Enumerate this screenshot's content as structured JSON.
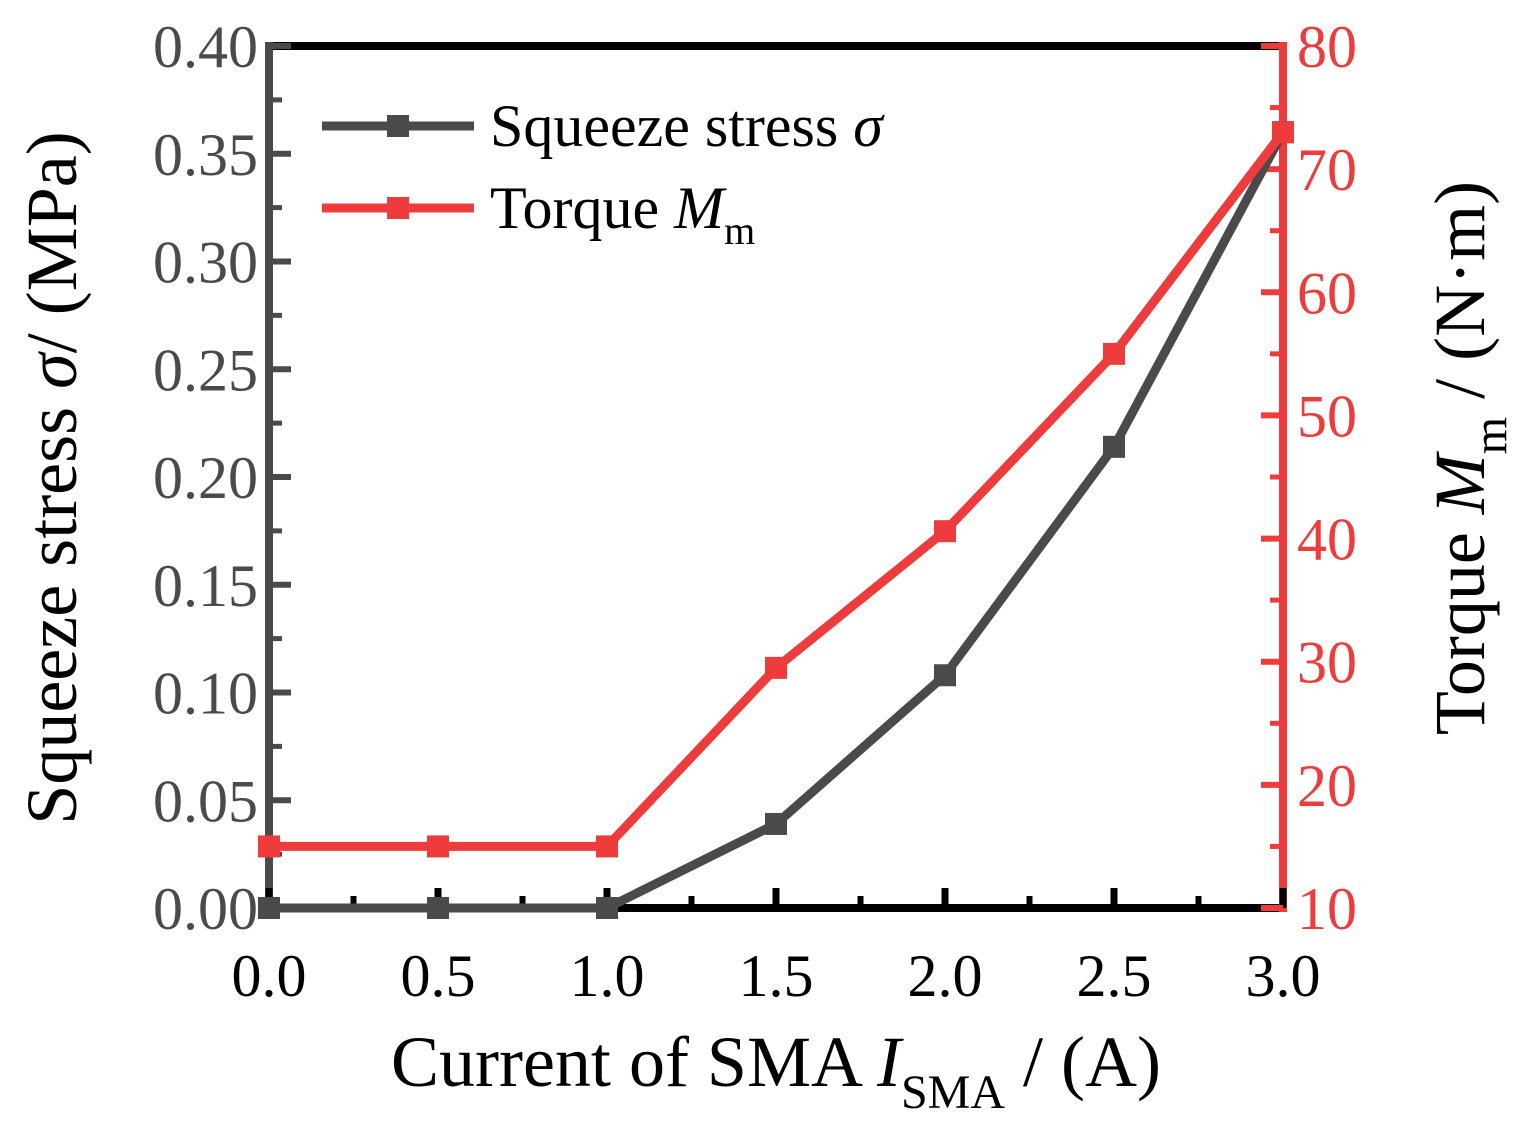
{
  "colors": {
    "stress": "#4a4a4a",
    "torque": "#ee3b3b",
    "axis": "#000000",
    "stress_tick_text": "#4a4a4a"
  },
  "chart_data": {
    "type": "line",
    "x_axis": {
      "label": "Current of SMA ",
      "label_symbol": "I",
      "label_subscript": "SMA",
      "label_unit": " / (A)",
      "range": [
        0.0,
        3.0
      ],
      "major_ticks": [
        0.0,
        0.5,
        1.0,
        1.5,
        2.0,
        2.5,
        3.0
      ],
      "tick_labels": [
        "0.0",
        "0.5",
        "1.0",
        "1.5",
        "2.0",
        "2.5",
        "3.0"
      ]
    },
    "y_left": {
      "label_prefix": "Squeeze stress ",
      "label_symbol": "σ",
      "label_unit": "/ (MPa)",
      "range": [
        0.0,
        0.4
      ],
      "major_ticks": [
        0.0,
        0.05,
        0.1,
        0.15,
        0.2,
        0.25,
        0.3,
        0.35,
        0.4
      ],
      "tick_labels": [
        "0.00",
        "0.05",
        "0.10",
        "0.15",
        "0.20",
        "0.25",
        "0.30",
        "0.35",
        "0.40"
      ]
    },
    "y_right": {
      "label_prefix": "Torque ",
      "label_symbol": "M",
      "label_subscript": "m",
      "label_unit": " / (N·m)",
      "range": [
        10,
        80
      ],
      "major_ticks": [
        10,
        20,
        30,
        40,
        50,
        60,
        70,
        80
      ],
      "tick_labels": [
        "10",
        "20",
        "30",
        "40",
        "50",
        "60",
        "70",
        "80"
      ]
    },
    "series": [
      {
        "name": "Squeeze stress σ",
        "legend_text": "Squeeze stress ",
        "legend_symbol": "σ",
        "legend_subscript": "",
        "axis": "left",
        "color_key": "stress",
        "x": [
          0.0,
          0.5,
          1.0,
          1.5,
          2.0,
          2.5,
          3.0
        ],
        "y": [
          0.0,
          0.0,
          0.0,
          0.039,
          0.108,
          0.214,
          0.36
        ]
      },
      {
        "name": "Torque Mm",
        "legend_text": "Torque ",
        "legend_symbol": "M",
        "legend_subscript": "m",
        "axis": "right",
        "color_key": "torque",
        "x": [
          0.0,
          0.5,
          1.0,
          1.5,
          2.0,
          2.5,
          3.0
        ],
        "y": [
          15.0,
          15.0,
          15.0,
          29.5,
          40.6,
          55.0,
          73.0
        ]
      }
    ],
    "legend_position": "top-left",
    "grid": false
  }
}
